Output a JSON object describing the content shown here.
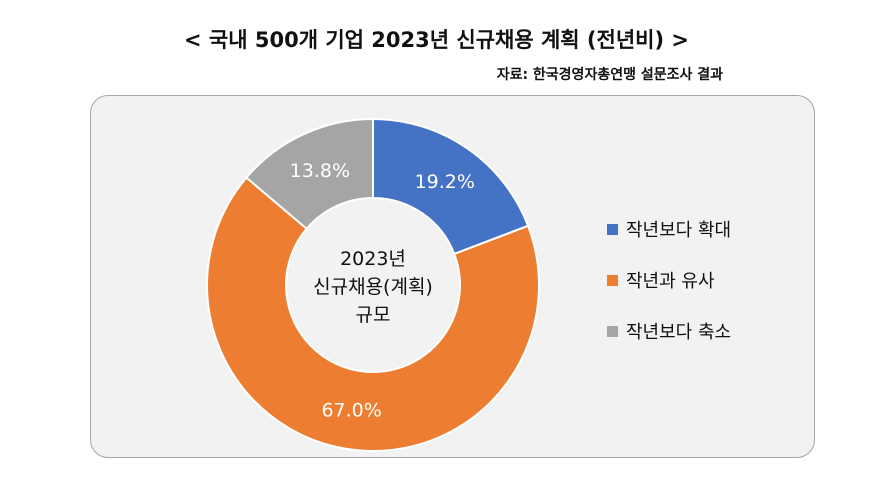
{
  "title": "< 국내 500개 기업 2023년 신규채용 계획 (전년비) >",
  "source": "자료: 한국경영자총연맹 설문조사 결과",
  "chart_data": {
    "type": "pie",
    "subtype": "donut",
    "center_label": [
      "2023년",
      "신규채용(계획)",
      "규모"
    ],
    "categories": [
      "작년보다 확대",
      "작년과 유사",
      "작년보다 축소"
    ],
    "values": [
      19.2,
      67.0,
      13.8
    ],
    "labels": [
      "19.2%",
      "67.0%",
      "13.8%"
    ],
    "colors": [
      "#4472c4",
      "#ed7d31",
      "#a5a5a5"
    ],
    "legend_position": "right"
  }
}
